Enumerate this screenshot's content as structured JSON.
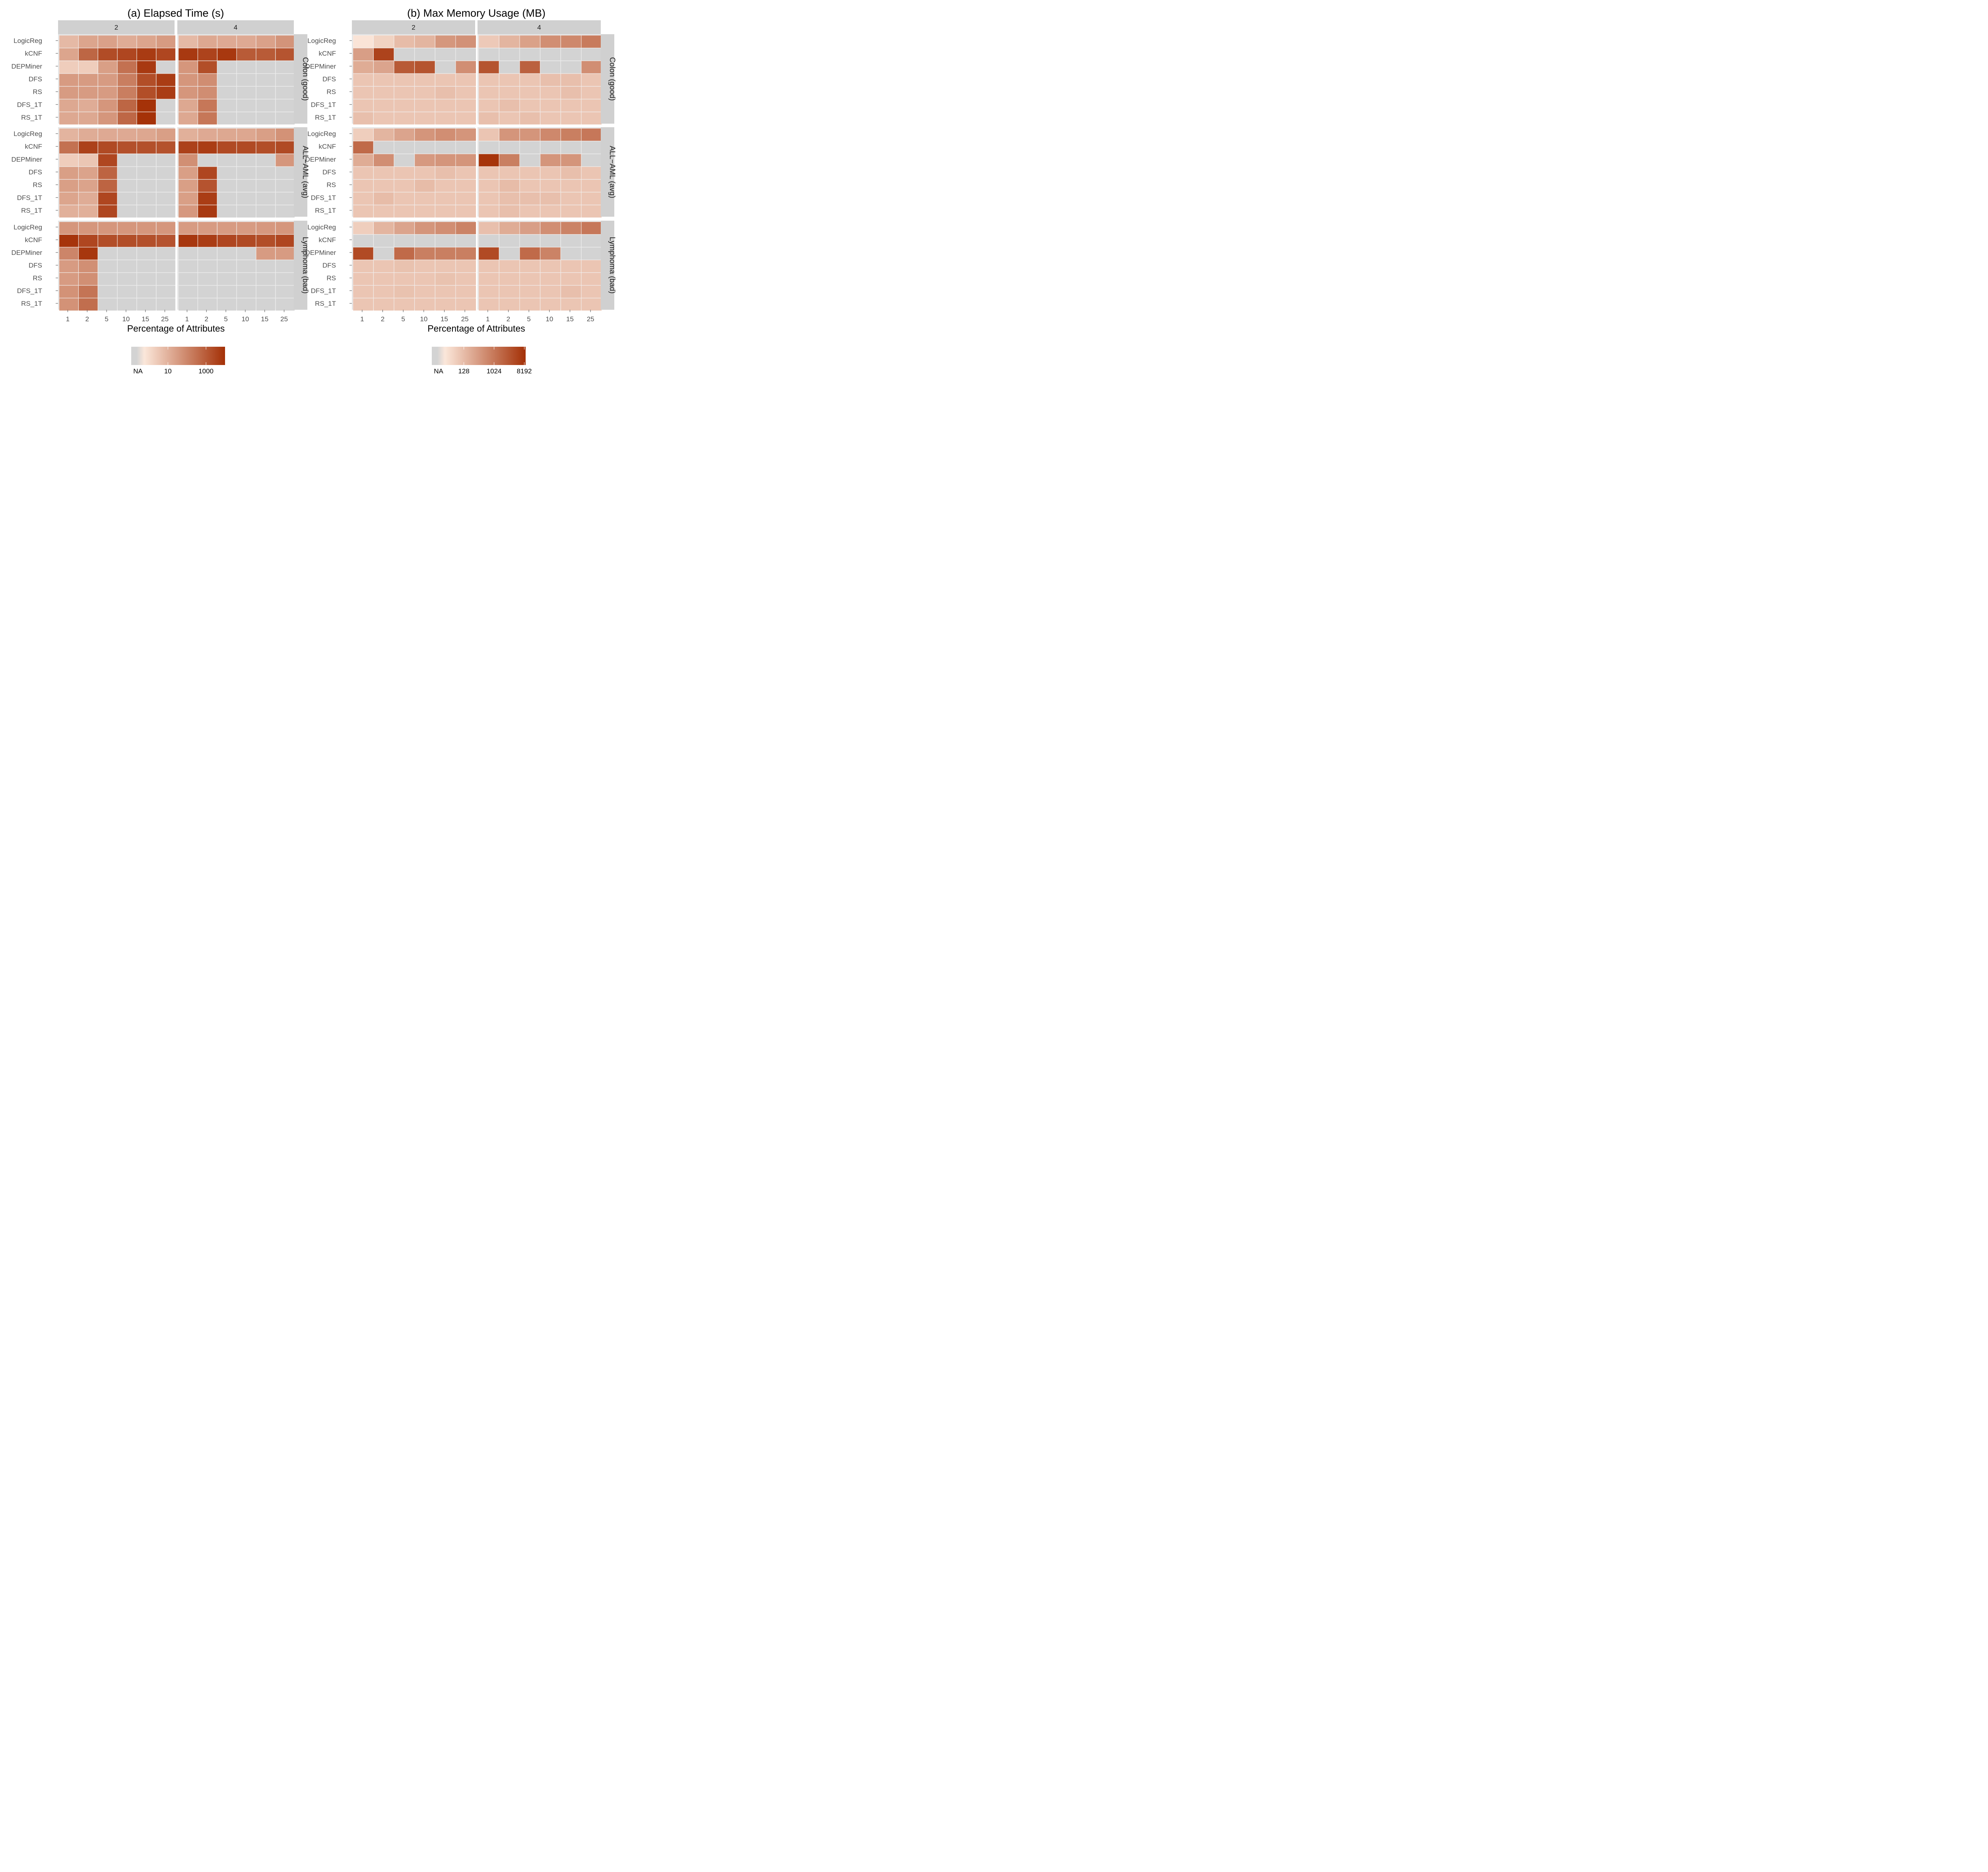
{
  "chart_data": [
    {
      "type": "heatmap",
      "title": "(a) Elapsed Time (s)",
      "xlabel": "Percentage of Attributes",
      "x_ticks": [
        "1",
        "2",
        "5",
        "10",
        "15",
        "25"
      ],
      "y_ticks": [
        "LogicReg",
        "kCNF",
        "DEPMiner",
        "DFS",
        "RS",
        "DFS_1T",
        "RS_1T"
      ],
      "column_facets": [
        "2",
        "4"
      ],
      "row_facets": [
        "Colon (good)",
        "ALL−AML (avg)",
        "Lymphoma (bad)"
      ],
      "scale": "log10",
      "legend": {
        "labels": [
          "NA",
          "10",
          "1000"
        ],
        "ticks": [
          10,
          1000
        ],
        "na_label": "NA",
        "placement": "bottom",
        "domain": [
          0.5,
          10000
        ]
      },
      "na_color": "#d3d3d3",
      "low_color": "#fbe7da",
      "high_color": "#a43006",
      "facets": [
        {
          "row": "Colon (good)",
          "col": "2",
          "values": [
            [
              6,
              18,
              22,
              12,
              18,
              30
            ],
            [
              18,
              550,
              2200,
              3000,
              5500,
              3000
            ],
            [
              2,
              2,
              25,
              300,
              6000,
              null
            ],
            [
              30,
              30,
              30,
              150,
              2000,
              5000
            ],
            [
              30,
              30,
              30,
              150,
              2000,
              5000
            ],
            [
              15,
              12,
              40,
              550,
              9000,
              null
            ],
            [
              15,
              15,
              40,
              500,
              9000,
              null
            ]
          ]
        },
        {
          "row": "Colon (good)",
          "col": "4",
          "values": [
            [
              6,
              15,
              14,
              14,
              22,
              45
            ],
            [
              6000,
              3500,
              6500,
              1000,
              1000,
              1400
            ],
            [
              40,
              2000,
              null,
              null,
              null,
              null
            ],
            [
              40,
              65,
              null,
              null,
              null,
              null
            ],
            [
              40,
              65,
              null,
              null,
              null,
              null
            ],
            [
              15,
              220,
              null,
              null,
              null,
              null
            ],
            [
              15,
              220,
              null,
              null,
              null,
              null
            ]
          ]
        },
        {
          "row": "ALL−AML (avg)",
          "col": "2",
          "values": [
            [
              8,
              12,
              14,
              14,
              16,
              25
            ],
            [
              300,
              4000,
              2500,
              1800,
              1800,
              1600
            ],
            [
              2,
              3,
              3000,
              null,
              null,
              null
            ],
            [
              25,
              20,
              600,
              null,
              null,
              null
            ],
            [
              25,
              20,
              600,
              null,
              null,
              null
            ],
            [
              18,
              12,
              3000,
              null,
              null,
              null
            ],
            [
              10,
              10,
              3000,
              null,
              null,
              null
            ]
          ]
        },
        {
          "row": "ALL−AML (avg)",
          "col": "4",
          "values": [
            [
              10,
              14,
              15,
              16,
              25,
              50
            ],
            [
              4000,
              5000,
              2500,
              2500,
              2000,
              2500
            ],
            [
              60,
              null,
              null,
              null,
              null,
              40
            ],
            [
              25,
              3000,
              null,
              null,
              null,
              null
            ],
            [
              25,
              1500,
              null,
              null,
              null,
              null
            ],
            [
              25,
              5000,
              null,
              null,
              null,
              null
            ],
            [
              35,
              6000,
              null,
              null,
              null,
              null
            ]
          ]
        },
        {
          "row": "Lymphoma (bad)",
          "col": "2",
          "values": [
            [
              40,
              40,
              40,
              40,
              40,
              40
            ],
            [
              8000,
              3000,
              2000,
              2000,
              1800,
              1500
            ],
            [
              100,
              7000,
              null,
              null,
              null,
              null
            ],
            [
              30,
              60,
              null,
              null,
              null,
              null
            ],
            [
              30,
              60,
              null,
              null,
              null,
              null
            ],
            [
              50,
              250,
              null,
              null,
              null,
              null
            ],
            [
              50,
              350,
              null,
              null,
              null,
              null
            ]
          ]
        },
        {
          "row": "Lymphoma (bad)",
          "col": "4",
          "values": [
            [
              30,
              30,
              30,
              30,
              35,
              40
            ],
            [
              7000,
              5000,
              3000,
              2500,
              2000,
              3000
            ],
            [
              null,
              null,
              null,
              null,
              30,
              30
            ],
            [
              null,
              null,
              null,
              null,
              null,
              null
            ],
            [
              null,
              null,
              null,
              null,
              null,
              null
            ],
            [
              null,
              null,
              null,
              null,
              null,
              null
            ],
            [
              null,
              null,
              null,
              null,
              null,
              null
            ]
          ]
        }
      ]
    },
    {
      "type": "heatmap",
      "title": "(b) Max Memory Usage (MB)",
      "xlabel": "Percentage of Attributes",
      "x_ticks": [
        "1",
        "2",
        "5",
        "10",
        "15",
        "25"
      ],
      "y_ticks": [
        "LogicReg",
        "kCNF",
        "DEPMiner",
        "DFS",
        "RS",
        "DFS_1T",
        "RS_1T"
      ],
      "column_facets": [
        "2",
        "4"
      ],
      "row_facets": [
        "Colon (good)",
        "ALL−AML (avg)",
        "Lymphoma (bad)"
      ],
      "scale": "log2",
      "legend": {
        "labels": [
          "NA",
          "128",
          "1024",
          "8192"
        ],
        "ticks": [
          128,
          1024,
          8192
        ],
        "na_label": "NA",
        "placement": "bottom",
        "domain": [
          32,
          9000
        ]
      },
      "na_color": "#d3d3d3",
      "low_color": "#fbe7da",
      "high_color": "#a43006",
      "facets": [
        {
          "row": "Colon (good)",
          "col": "2",
          "values": [
            [
              35,
              60,
              120,
              150,
              380,
              450
            ],
            [
              300,
              5000,
              null,
              null,
              null,
              null
            ],
            [
              200,
              250,
              2500,
              3000,
              null,
              500
            ],
            [
              90,
              90,
              90,
              90,
              90,
              90
            ],
            [
              90,
              90,
              90,
              90,
              110,
              90
            ],
            [
              90,
              90,
              90,
              90,
              90,
              90
            ],
            [
              110,
              90,
              90,
              90,
              90,
              90
            ]
          ]
        },
        {
          "row": "Colon (good)",
          "col": "4",
          "values": [
            [
              80,
              150,
              280,
              500,
              600,
              900
            ],
            [
              null,
              null,
              null,
              null,
              null,
              null
            ],
            [
              3000,
              null,
              2000,
              null,
              null,
              500
            ],
            [
              90,
              90,
              90,
              110,
              110,
              90
            ],
            [
              90,
              90,
              90,
              90,
              110,
              90
            ],
            [
              90,
              110,
              90,
              90,
              90,
              90
            ],
            [
              110,
              90,
              110,
              90,
              90,
              90
            ]
          ]
        },
        {
          "row": "ALL−AML (avg)",
          "col": "2",
          "values": [
            [
              70,
              150,
              250,
              400,
              500,
              400
            ],
            [
              1500,
              null,
              null,
              null,
              null,
              null
            ],
            [
              200,
              500,
              null,
              350,
              400,
              400
            ],
            [
              90,
              90,
              90,
              90,
              110,
              90
            ],
            [
              90,
              90,
              90,
              120,
              90,
              90
            ],
            [
              90,
              120,
              90,
              90,
              90,
              90
            ],
            [
              90,
              90,
              90,
              90,
              90,
              90
            ]
          ]
        },
        {
          "row": "ALL−AML (avg)",
          "col": "4",
          "values": [
            [
              90,
              400,
              400,
              600,
              800,
              1000
            ],
            [
              null,
              null,
              null,
              null,
              null,
              null
            ],
            [
              8000,
              800,
              null,
              400,
              400,
              null
            ],
            [
              90,
              90,
              90,
              90,
              110,
              90
            ],
            [
              90,
              120,
              90,
              90,
              90,
              90
            ],
            [
              90,
              110,
              110,
              110,
              90,
              90
            ],
            [
              90,
              110,
              90,
              90,
              90,
              90
            ]
          ]
        },
        {
          "row": "Lymphoma (bad)",
          "col": "2",
          "values": [
            [
              70,
              150,
              250,
              400,
              500,
              700
            ],
            [
              null,
              null,
              null,
              null,
              null,
              null
            ],
            [
              4000,
              null,
              1500,
              800,
              800,
              800
            ],
            [
              90,
              90,
              100,
              90,
              90,
              90
            ],
            [
              90,
              90,
              90,
              90,
              100,
              90
            ],
            [
              90,
              90,
              100,
              90,
              90,
              90
            ],
            [
              90,
              90,
              90,
              90,
              90,
              90
            ]
          ]
        },
        {
          "row": "Lymphoma (bad)",
          "col": "4",
          "values": [
            [
              110,
              200,
              300,
              500,
              700,
              1000
            ],
            [
              null,
              null,
              null,
              null,
              null,
              null
            ],
            [
              4000,
              null,
              1500,
              700,
              null,
              null
            ],
            [
              90,
              90,
              90,
              90,
              90,
              90
            ],
            [
              90,
              90,
              90,
              90,
              90,
              90
            ],
            [
              90,
              90,
              90,
              90,
              110,
              90
            ],
            [
              90,
              90,
              90,
              90,
              90,
              90
            ]
          ]
        }
      ]
    }
  ]
}
